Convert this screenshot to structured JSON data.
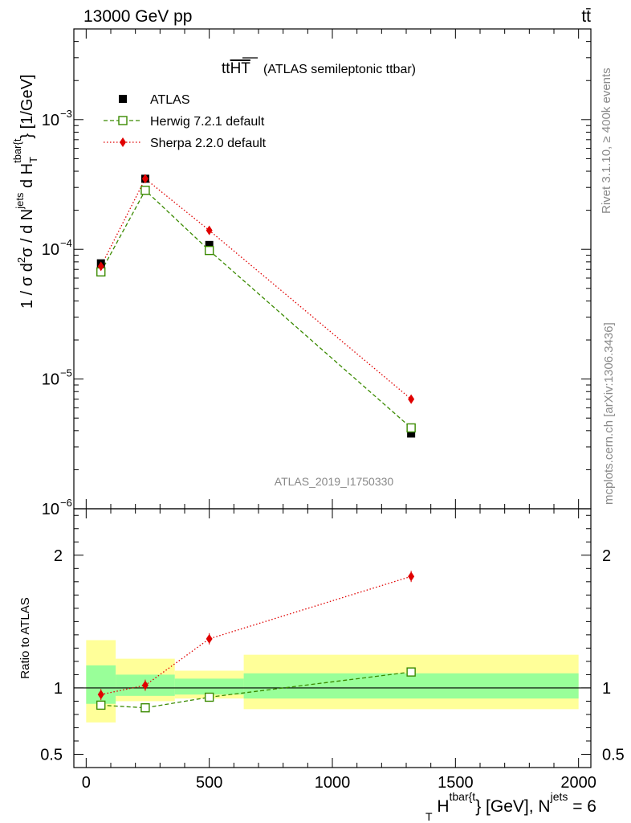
{
  "header": {
    "energy_label": "13000 GeV pp",
    "process_label": "tt̄"
  },
  "side_labels": {
    "rivet": "Rivet 3.1.10, ≥ 400k events",
    "mcplots": "mcplots.cern.ch [arXiv:1306.3436]"
  },
  "colors": {
    "atlas": "#000000",
    "herwig": "#3a8a00",
    "sherpa": "#e00000",
    "band_inner": "#99ff99",
    "band_outer": "#ffff99"
  },
  "chart_data": [
    {
      "type": "scatter",
      "title": "ttHT",
      "title_main": "tt",
      "title_over": "HT",
      "subtitle": "(ATLAS semileptonic ttbar)",
      "watermark": "ATLAS_2019_I1750330",
      "yscale": "log",
      "ylim": [
        1e-06,
        0.005
      ],
      "xlim": [
        -50,
        2050
      ],
      "ylabel": {
        "text1": "1 / σ d",
        "sup2": "2",
        "text2": "σ / d N",
        "sup_jets": "jets",
        "text3": " d H",
        "sub_T": "T",
        "sup_tbar": "tbar{t",
        "text4": "} [1/GeV]"
      },
      "yticks": [
        {
          "v": 1e-06,
          "label": "10",
          "exp": "−6"
        },
        {
          "v": 1e-05,
          "label": "10",
          "exp": "−5"
        },
        {
          "v": 0.0001,
          "label": "10",
          "exp": "−4"
        },
        {
          "v": 0.001,
          "label": "10",
          "exp": "−3"
        }
      ],
      "legend": [
        {
          "name": "ATLAS",
          "style": "square-filled"
        },
        {
          "name": "Herwig 7.2.1 default",
          "style": "square-open-dashed"
        },
        {
          "name": "Sherpa 2.2.0 default",
          "style": "diamond-dotted"
        }
      ],
      "series": [
        {
          "name": "ATLAS",
          "x": [
            60,
            240,
            500,
            1320
          ],
          "y": [
            7.8e-05,
            0.00035,
            0.000108,
            3.8e-06
          ]
        },
        {
          "name": "Herwig 7.2.1 default",
          "x": [
            60,
            240,
            500,
            1320
          ],
          "y": [
            6.7e-05,
            0.000285,
            9.8e-05,
            4.2e-06
          ]
        },
        {
          "name": "Sherpa 2.2.0 default",
          "x": [
            60,
            240,
            500,
            1320
          ],
          "y": [
            7.4e-05,
            0.00035,
            0.00014,
            7e-06
          ]
        }
      ]
    },
    {
      "type": "line",
      "ylabel": "Ratio to ATLAS",
      "xlabel": {
        "H": "H",
        "sup_tbar": "tbar{t",
        "sub_T": "T",
        "rest": "} [GeV], N",
        "sup_jets": "jets",
        "tail": " = 6"
      },
      "ylim": [
        0.4,
        2.35
      ],
      "xlim": [
        -50,
        2050
      ],
      "yticks": [
        {
          "v": 0.5,
          "label": "0.5"
        },
        {
          "v": 1,
          "label": "1"
        },
        {
          "v": 2,
          "label": "2"
        }
      ],
      "xticks": [
        {
          "v": 0,
          "label": "0"
        },
        {
          "v": 500,
          "label": "500"
        },
        {
          "v": 1000,
          "label": "1000"
        },
        {
          "v": 1500,
          "label": "1500"
        },
        {
          "v": 2000,
          "label": "2000"
        }
      ],
      "uncertainty_bins": [
        {
          "xlo": 0,
          "xhi": 120,
          "inner": [
            0.88,
            1.17
          ],
          "outer": [
            0.74,
            1.36
          ]
        },
        {
          "xlo": 120,
          "xhi": 360,
          "inner": [
            0.94,
            1.1
          ],
          "outer": [
            0.9,
            1.22
          ]
        },
        {
          "xlo": 360,
          "xhi": 640,
          "inner": [
            0.95,
            1.07
          ],
          "outer": [
            0.92,
            1.13
          ]
        },
        {
          "xlo": 640,
          "xhi": 2000,
          "inner": [
            0.92,
            1.11
          ],
          "outer": [
            0.84,
            1.25
          ]
        }
      ],
      "series": [
        {
          "name": "Herwig 7.2.1 default",
          "x": [
            60,
            240,
            500,
            1320
          ],
          "y": [
            0.87,
            0.85,
            0.93,
            1.12
          ]
        },
        {
          "name": "Sherpa 2.2.0 default",
          "x": [
            60,
            240,
            500,
            1320
          ],
          "y": [
            0.95,
            1.02,
            1.37,
            1.84
          ]
        }
      ]
    }
  ]
}
